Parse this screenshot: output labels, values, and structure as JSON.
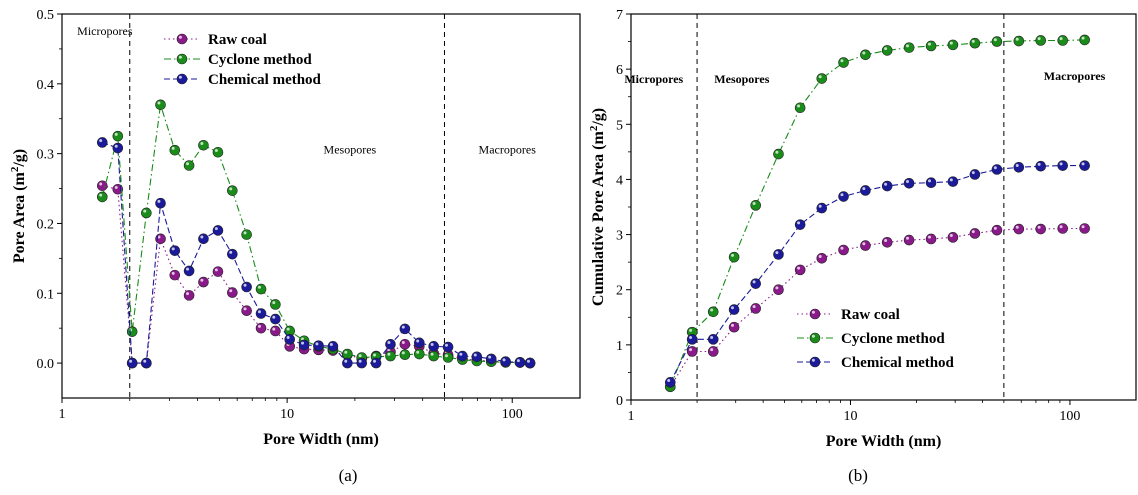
{
  "figure": {
    "panel_a_caption": "(a)",
    "panel_b_caption": "(b)"
  },
  "chart_data": [
    {
      "type": "line",
      "panel": "(a)",
      "title": "",
      "xlabel": "Pore Width (nm)",
      "ylabel": "Pore Area (m²/g)",
      "ylabel_main": "Pore Area (m",
      "ylabel_sup": "2",
      "ylabel_tail": "/g)",
      "x_scale": "log",
      "xlim": [
        1,
        200
      ],
      "ylim": [
        -0.05,
        0.5
      ],
      "x_ticks": [
        1,
        10,
        100
      ],
      "x_tick_labels": [
        "1",
        "10",
        "100"
      ],
      "y_ticks": [
        0.0,
        0.1,
        0.2,
        0.3,
        0.4,
        0.5
      ],
      "y_tick_labels": [
        "0.0",
        "0.1",
        "0.2",
        "0.3",
        "0.4",
        "0.5"
      ],
      "grid": false,
      "legend_position": "top-center",
      "vlines": [
        2,
        50
      ],
      "region_labels": [
        {
          "text": "Micropores",
          "x": 1.55,
          "y": 0.47
        },
        {
          "text": "Mesopores",
          "x": 19,
          "y": 0.3
        },
        {
          "text": "Macropores",
          "x": 95,
          "y": 0.3
        }
      ],
      "series": [
        {
          "name": "Raw coal",
          "color": "#8a1a8a",
          "line": "dotted",
          "x": [
            1.51,
            1.77,
            2.05,
            2.37,
            2.74,
            3.17,
            3.67,
            4.25,
            4.93,
            5.71,
            6.61,
            7.66,
            8.87,
            10.27,
            11.9,
            13.79,
            15.98,
            18.52,
            21.45,
            24.85,
            28.79,
            33.36,
            38.65,
            44.78,
            51.88,
            60.1,
            69.63,
            80.67,
            93.46,
            108.28,
            120
          ],
          "y": [
            0.254,
            0.249,
            0.0,
            0.0,
            0.178,
            0.126,
            0.097,
            0.116,
            0.131,
            0.101,
            0.075,
            0.05,
            0.046,
            0.024,
            0.02,
            0.019,
            0.018,
            0.012,
            0.006,
            0.01,
            0.016,
            0.027,
            0.024,
            0.014,
            0.012,
            0.006,
            0.004,
            0.003,
            0.002,
            0.001,
            0.0
          ]
        },
        {
          "name": "Cyclone method",
          "color": "#1a8c1a",
          "line": "dashdot",
          "x": [
            1.51,
            1.77,
            2.05,
            2.37,
            2.74,
            3.17,
            3.67,
            4.25,
            4.93,
            5.71,
            6.61,
            7.66,
            8.87,
            10.27,
            11.9,
            13.79,
            15.98,
            18.52,
            21.45,
            24.85,
            28.79,
            33.36,
            38.65,
            44.78,
            51.88,
            60.1,
            69.63,
            80.67,
            93.46,
            108.28,
            120
          ],
          "y": [
            0.238,
            0.325,
            0.045,
            0.215,
            0.37,
            0.305,
            0.283,
            0.312,
            0.302,
            0.247,
            0.184,
            0.106,
            0.084,
            0.046,
            0.032,
            0.024,
            0.02,
            0.013,
            0.008,
            0.009,
            0.01,
            0.012,
            0.013,
            0.01,
            0.008,
            0.005,
            0.003,
            0.002,
            0.001,
            0.001,
            0.0
          ]
        },
        {
          "name": "Chemical method",
          "color": "#1a1a9a",
          "line": "dashed",
          "x": [
            1.51,
            1.77,
            2.05,
            2.37,
            2.74,
            3.17,
            3.67,
            4.25,
            4.93,
            5.71,
            6.61,
            7.66,
            8.87,
            10.27,
            11.9,
            13.79,
            15.98,
            18.52,
            21.45,
            24.85,
            28.79,
            33.36,
            38.65,
            44.78,
            51.88,
            60.1,
            69.63,
            80.67,
            93.46,
            108.28,
            120
          ],
          "y": [
            0.316,
            0.308,
            0.0,
            0.0,
            0.229,
            0.161,
            0.132,
            0.178,
            0.19,
            0.156,
            0.109,
            0.071,
            0.063,
            0.034,
            0.026,
            0.025,
            0.024,
            0.0,
            0.0,
            0.0,
            0.027,
            0.049,
            0.029,
            0.024,
            0.023,
            0.01,
            0.009,
            0.006,
            0.002,
            0.001,
            0.0
          ]
        }
      ]
    },
    {
      "type": "line",
      "panel": "(b)",
      "title": "",
      "xlabel": "Pore Width (nm)",
      "ylabel": "Cumulative Pore Area (m²/g)",
      "ylabel_main": "Cumulative Pore Area (m",
      "ylabel_sup": "2",
      "ylabel_tail": "/g)",
      "x_scale": "log",
      "xlim": [
        1,
        200
      ],
      "ylim": [
        0,
        7
      ],
      "x_ticks": [
        1,
        10,
        100
      ],
      "x_tick_labels": [
        "1",
        "10",
        "100"
      ],
      "y_ticks": [
        0,
        1,
        2,
        3,
        4,
        5,
        6,
        7
      ],
      "y_tick_labels": [
        "0",
        "1",
        "2",
        "3",
        "4",
        "5",
        "6",
        "7"
      ],
      "grid": false,
      "legend_position": "bottom-center",
      "vlines": [
        2,
        50
      ],
      "region_labels": [
        {
          "text": "Micropores",
          "x": 1.27,
          "y": 5.75
        },
        {
          "text": "Mesopores",
          "x": 3.2,
          "y": 5.75
        },
        {
          "text": "Macropores",
          "x": 105,
          "y": 5.8
        }
      ],
      "series": [
        {
          "name": "Raw coal",
          "color": "#8a1a8a",
          "line": "dotted",
          "x": [
            1.51,
            1.9,
            2.37,
            2.95,
            3.7,
            4.7,
            5.9,
            7.4,
            9.3,
            11.7,
            14.7,
            18.5,
            23.3,
            29.3,
            36.9,
            46.5,
            58.5,
            73.6,
            92.7,
            116.7
          ],
          "y": [
            0.24,
            0.88,
            0.88,
            1.32,
            1.66,
            2.0,
            2.36,
            2.57,
            2.72,
            2.8,
            2.86,
            2.9,
            2.92,
            2.95,
            3.02,
            3.08,
            3.1,
            3.1,
            3.11,
            3.11
          ]
        },
        {
          "name": "Cyclone method",
          "color": "#1a8c1a",
          "line": "dashdot",
          "x": [
            1.51,
            1.9,
            2.37,
            2.95,
            3.7,
            4.7,
            5.9,
            7.4,
            9.3,
            11.7,
            14.7,
            18.5,
            23.3,
            29.3,
            36.9,
            46.5,
            58.5,
            73.6,
            92.7,
            116.7
          ],
          "y": [
            0.24,
            1.23,
            1.6,
            2.59,
            3.53,
            4.46,
            5.3,
            5.83,
            6.12,
            6.26,
            6.34,
            6.39,
            6.42,
            6.44,
            6.47,
            6.5,
            6.51,
            6.52,
            6.52,
            6.53
          ]
        },
        {
          "name": "Chemical method",
          "color": "#1a1a9a",
          "line": "dashed",
          "x": [
            1.51,
            1.9,
            2.37,
            2.95,
            3.7,
            4.7,
            5.9,
            7.4,
            9.3,
            11.7,
            14.7,
            18.5,
            23.3,
            29.3,
            36.9,
            46.5,
            58.5,
            73.6,
            92.7,
            116.7
          ],
          "y": [
            0.32,
            1.1,
            1.1,
            1.64,
            2.11,
            2.64,
            3.18,
            3.48,
            3.69,
            3.8,
            3.88,
            3.93,
            3.94,
            3.96,
            4.09,
            4.18,
            4.22,
            4.24,
            4.25,
            4.25
          ]
        }
      ]
    }
  ]
}
